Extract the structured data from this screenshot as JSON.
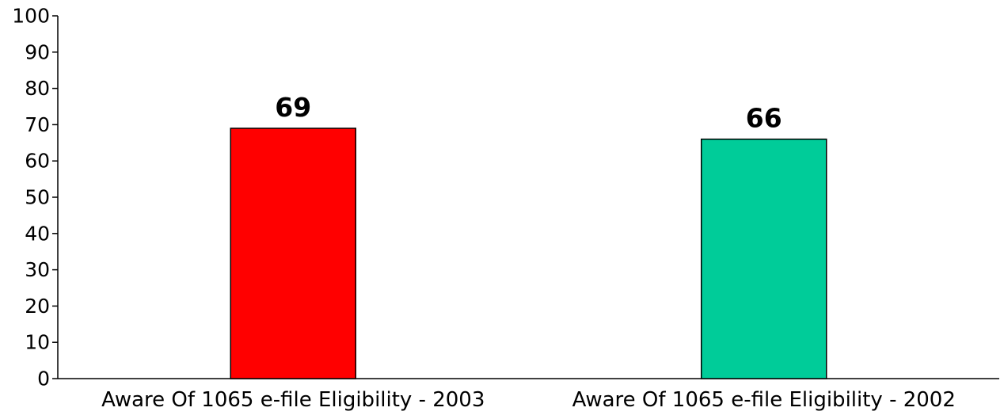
{
  "chart_data": {
    "type": "bar",
    "categories": [
      "Aware Of 1065 e-file Eligibility - 2003",
      "Aware Of 1065 e-file Eligibility - 2002"
    ],
    "values": [
      69,
      66
    ],
    "data_labels": [
      "69",
      "66"
    ],
    "colors": [
      "#ff0000",
      "#00cc99"
    ],
    "title": "",
    "xlabel": "",
    "ylabel": "",
    "ylim": [
      0,
      100
    ],
    "yticks": [
      0,
      10,
      20,
      30,
      40,
      50,
      60,
      70,
      80,
      90,
      100
    ],
    "ytick_labels": [
      "0",
      "10",
      "20",
      "30",
      "40",
      "50",
      "60",
      "70",
      "80",
      "90",
      "100"
    ],
    "grid": false,
    "legend": "none"
  }
}
